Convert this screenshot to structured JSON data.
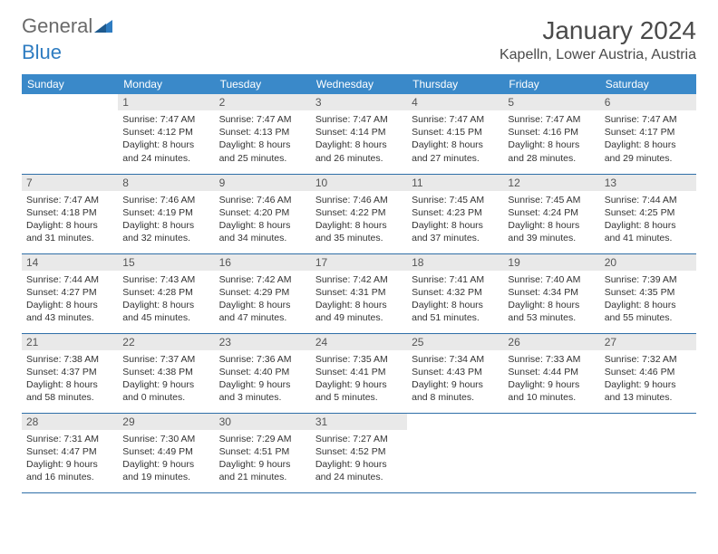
{
  "logo": {
    "part1": "General",
    "part2": "Blue"
  },
  "title": "January 2024",
  "location": "Kapelln, Lower Austria, Austria",
  "colors": {
    "header_bg": "#3a89c9",
    "header_text": "#ffffff",
    "daynum_bg": "#e9e9e9",
    "border": "#2f6fa8",
    "logo_gray": "#6a6a6a",
    "logo_blue": "#2e7cc1"
  },
  "day_headers": [
    "Sunday",
    "Monday",
    "Tuesday",
    "Wednesday",
    "Thursday",
    "Friday",
    "Saturday"
  ],
  "weeks": [
    [
      null,
      {
        "n": "1",
        "sr": "Sunrise: 7:47 AM",
        "ss": "Sunset: 4:12 PM",
        "d1": "Daylight: 8 hours",
        "d2": "and 24 minutes."
      },
      {
        "n": "2",
        "sr": "Sunrise: 7:47 AM",
        "ss": "Sunset: 4:13 PM",
        "d1": "Daylight: 8 hours",
        "d2": "and 25 minutes."
      },
      {
        "n": "3",
        "sr": "Sunrise: 7:47 AM",
        "ss": "Sunset: 4:14 PM",
        "d1": "Daylight: 8 hours",
        "d2": "and 26 minutes."
      },
      {
        "n": "4",
        "sr": "Sunrise: 7:47 AM",
        "ss": "Sunset: 4:15 PM",
        "d1": "Daylight: 8 hours",
        "d2": "and 27 minutes."
      },
      {
        "n": "5",
        "sr": "Sunrise: 7:47 AM",
        "ss": "Sunset: 4:16 PM",
        "d1": "Daylight: 8 hours",
        "d2": "and 28 minutes."
      },
      {
        "n": "6",
        "sr": "Sunrise: 7:47 AM",
        "ss": "Sunset: 4:17 PM",
        "d1": "Daylight: 8 hours",
        "d2": "and 29 minutes."
      }
    ],
    [
      {
        "n": "7",
        "sr": "Sunrise: 7:47 AM",
        "ss": "Sunset: 4:18 PM",
        "d1": "Daylight: 8 hours",
        "d2": "and 31 minutes."
      },
      {
        "n": "8",
        "sr": "Sunrise: 7:46 AM",
        "ss": "Sunset: 4:19 PM",
        "d1": "Daylight: 8 hours",
        "d2": "and 32 minutes."
      },
      {
        "n": "9",
        "sr": "Sunrise: 7:46 AM",
        "ss": "Sunset: 4:20 PM",
        "d1": "Daylight: 8 hours",
        "d2": "and 34 minutes."
      },
      {
        "n": "10",
        "sr": "Sunrise: 7:46 AM",
        "ss": "Sunset: 4:22 PM",
        "d1": "Daylight: 8 hours",
        "d2": "and 35 minutes."
      },
      {
        "n": "11",
        "sr": "Sunrise: 7:45 AM",
        "ss": "Sunset: 4:23 PM",
        "d1": "Daylight: 8 hours",
        "d2": "and 37 minutes."
      },
      {
        "n": "12",
        "sr": "Sunrise: 7:45 AM",
        "ss": "Sunset: 4:24 PM",
        "d1": "Daylight: 8 hours",
        "d2": "and 39 minutes."
      },
      {
        "n": "13",
        "sr": "Sunrise: 7:44 AM",
        "ss": "Sunset: 4:25 PM",
        "d1": "Daylight: 8 hours",
        "d2": "and 41 minutes."
      }
    ],
    [
      {
        "n": "14",
        "sr": "Sunrise: 7:44 AM",
        "ss": "Sunset: 4:27 PM",
        "d1": "Daylight: 8 hours",
        "d2": "and 43 minutes."
      },
      {
        "n": "15",
        "sr": "Sunrise: 7:43 AM",
        "ss": "Sunset: 4:28 PM",
        "d1": "Daylight: 8 hours",
        "d2": "and 45 minutes."
      },
      {
        "n": "16",
        "sr": "Sunrise: 7:42 AM",
        "ss": "Sunset: 4:29 PM",
        "d1": "Daylight: 8 hours",
        "d2": "and 47 minutes."
      },
      {
        "n": "17",
        "sr": "Sunrise: 7:42 AM",
        "ss": "Sunset: 4:31 PM",
        "d1": "Daylight: 8 hours",
        "d2": "and 49 minutes."
      },
      {
        "n": "18",
        "sr": "Sunrise: 7:41 AM",
        "ss": "Sunset: 4:32 PM",
        "d1": "Daylight: 8 hours",
        "d2": "and 51 minutes."
      },
      {
        "n": "19",
        "sr": "Sunrise: 7:40 AM",
        "ss": "Sunset: 4:34 PM",
        "d1": "Daylight: 8 hours",
        "d2": "and 53 minutes."
      },
      {
        "n": "20",
        "sr": "Sunrise: 7:39 AM",
        "ss": "Sunset: 4:35 PM",
        "d1": "Daylight: 8 hours",
        "d2": "and 55 minutes."
      }
    ],
    [
      {
        "n": "21",
        "sr": "Sunrise: 7:38 AM",
        "ss": "Sunset: 4:37 PM",
        "d1": "Daylight: 8 hours",
        "d2": "and 58 minutes."
      },
      {
        "n": "22",
        "sr": "Sunrise: 7:37 AM",
        "ss": "Sunset: 4:38 PM",
        "d1": "Daylight: 9 hours",
        "d2": "and 0 minutes."
      },
      {
        "n": "23",
        "sr": "Sunrise: 7:36 AM",
        "ss": "Sunset: 4:40 PM",
        "d1": "Daylight: 9 hours",
        "d2": "and 3 minutes."
      },
      {
        "n": "24",
        "sr": "Sunrise: 7:35 AM",
        "ss": "Sunset: 4:41 PM",
        "d1": "Daylight: 9 hours",
        "d2": "and 5 minutes."
      },
      {
        "n": "25",
        "sr": "Sunrise: 7:34 AM",
        "ss": "Sunset: 4:43 PM",
        "d1": "Daylight: 9 hours",
        "d2": "and 8 minutes."
      },
      {
        "n": "26",
        "sr": "Sunrise: 7:33 AM",
        "ss": "Sunset: 4:44 PM",
        "d1": "Daylight: 9 hours",
        "d2": "and 10 minutes."
      },
      {
        "n": "27",
        "sr": "Sunrise: 7:32 AM",
        "ss": "Sunset: 4:46 PM",
        "d1": "Daylight: 9 hours",
        "d2": "and 13 minutes."
      }
    ],
    [
      {
        "n": "28",
        "sr": "Sunrise: 7:31 AM",
        "ss": "Sunset: 4:47 PM",
        "d1": "Daylight: 9 hours",
        "d2": "and 16 minutes."
      },
      {
        "n": "29",
        "sr": "Sunrise: 7:30 AM",
        "ss": "Sunset: 4:49 PM",
        "d1": "Daylight: 9 hours",
        "d2": "and 19 minutes."
      },
      {
        "n": "30",
        "sr": "Sunrise: 7:29 AM",
        "ss": "Sunset: 4:51 PM",
        "d1": "Daylight: 9 hours",
        "d2": "and 21 minutes."
      },
      {
        "n": "31",
        "sr": "Sunrise: 7:27 AM",
        "ss": "Sunset: 4:52 PM",
        "d1": "Daylight: 9 hours",
        "d2": "and 24 minutes."
      },
      null,
      null,
      null
    ]
  ]
}
